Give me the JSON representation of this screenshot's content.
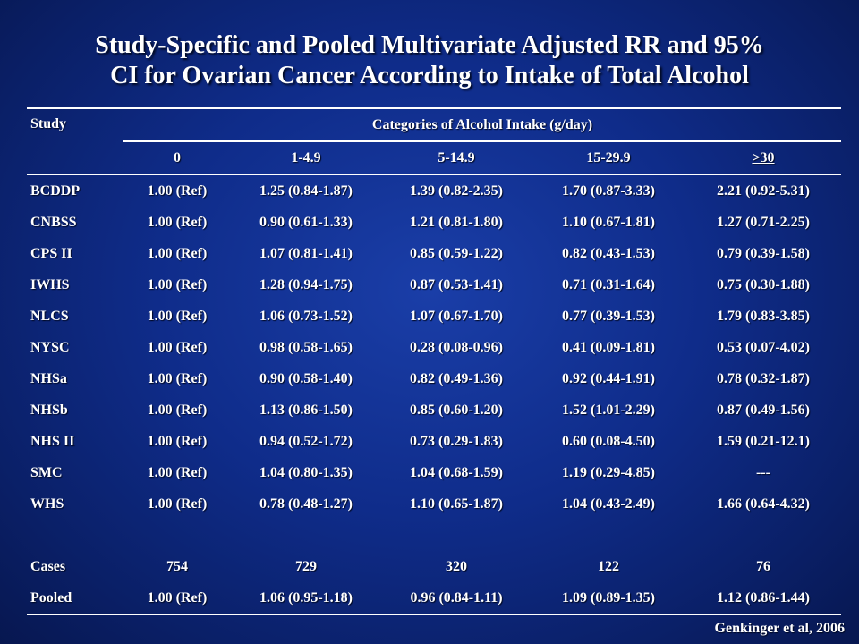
{
  "title": {
    "line1": "Study-Specific and Pooled Multivariate Adjusted RR and 95%",
    "line2": "CI for Ovarian Cancer According to Intake of Total Alcohol"
  },
  "table": {
    "study_header": "Study",
    "group_header": "Categories of Alcohol Intake (g/day)",
    "columns": [
      "0",
      "1-4.9",
      "5-14.9",
      "15-29.9",
      ">30"
    ],
    "rows": [
      {
        "study": "BCDDP",
        "values": [
          "1.00 (Ref)",
          "1.25 (0.84-1.87)",
          "1.39 (0.82-2.35)",
          "1.70 (0.87-3.33)",
          "2.21 (0.92-5.31)"
        ]
      },
      {
        "study": "CNBSS",
        "values": [
          "1.00 (Ref)",
          "0.90 (0.61-1.33)",
          "1.21 (0.81-1.80)",
          "1.10 (0.67-1.81)",
          "1.27 (0.71-2.25)"
        ]
      },
      {
        "study": "CPS II",
        "values": [
          "1.00 (Ref)",
          "1.07 (0.81-1.41)",
          "0.85 (0.59-1.22)",
          "0.82 (0.43-1.53)",
          "0.79 (0.39-1.58)"
        ]
      },
      {
        "study": "IWHS",
        "values": [
          "1.00 (Ref)",
          "1.28 (0.94-1.75)",
          "0.87 (0.53-1.41)",
          "0.71 (0.31-1.64)",
          "0.75 (0.30-1.88)"
        ]
      },
      {
        "study": "NLCS",
        "values": [
          "1.00 (Ref)",
          "1.06 (0.73-1.52)",
          "1.07 (0.67-1.70)",
          "0.77 (0.39-1.53)",
          "1.79 (0.83-3.85)"
        ]
      },
      {
        "study": "NYSC",
        "values": [
          "1.00 (Ref)",
          "0.98 (0.58-1.65)",
          "0.28 (0.08-0.96)",
          "0.41 (0.09-1.81)",
          "0.53 (0.07-4.02)"
        ]
      },
      {
        "study": "NHSa",
        "values": [
          "1.00 (Ref)",
          "0.90 (0.58-1.40)",
          "0.82 (0.49-1.36)",
          "0.92 (0.44-1.91)",
          "0.78 (0.32-1.87)"
        ]
      },
      {
        "study": "NHSb",
        "values": [
          "1.00 (Ref)",
          "1.13 (0.86-1.50)",
          "0.85 (0.60-1.20)",
          "1.52 (1.01-2.29)",
          "0.87 (0.49-1.56)"
        ]
      },
      {
        "study": "NHS II",
        "values": [
          "1.00 (Ref)",
          "0.94 (0.52-1.72)",
          "0.73 (0.29-1.83)",
          "0.60 (0.08-4.50)",
          "1.59 (0.21-12.1)"
        ]
      },
      {
        "study": "SMC",
        "values": [
          "1.00 (Ref)",
          "1.04 (0.80-1.35)",
          "1.04 (0.68-1.59)",
          "1.19 (0.29-4.85)",
          "---"
        ]
      },
      {
        "study": "WHS",
        "values": [
          "1.00 (Ref)",
          "0.78 (0.48-1.27)",
          "1.10 (0.65-1.87)",
          "1.04 (0.43-2.49)",
          "1.66 (0.64-4.32)"
        ]
      }
    ],
    "cases": {
      "label": "Cases",
      "values": [
        "754",
        "729",
        "320",
        "122",
        "76"
      ]
    },
    "pooled": {
      "label": "Pooled",
      "values": [
        "1.00 (Ref)",
        "1.06 (0.95-1.18)",
        "0.96 (0.84-1.11)",
        "1.09 (0.89-1.35)",
        "1.12 (0.86-1.44)"
      ]
    }
  },
  "footer": "Genkinger et al, 2006",
  "colors": {
    "background_center": "#1a3ea8",
    "background_edge": "#071750",
    "text": "#ffffff"
  }
}
